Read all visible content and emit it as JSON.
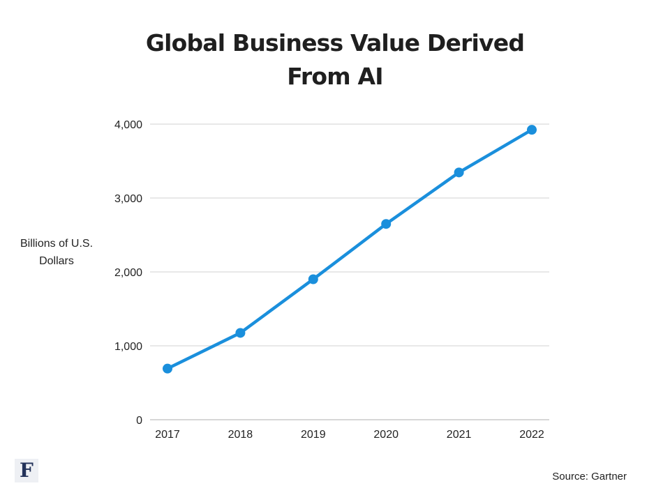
{
  "chart_data": {
    "type": "line",
    "title_lines": [
      "Global Business Value Derived",
      "From AI"
    ],
    "ylabel_lines": [
      "Billions of U.S.",
      "Dollars"
    ],
    "xlabel": "",
    "categories": [
      "2017",
      "2018",
      "2019",
      "2020",
      "2021",
      "2022"
    ],
    "series": [
      {
        "values": [
          692,
          1175,
          1901,
          2649,
          3346,
          3923
        ]
      }
    ],
    "ylim": [
      0,
      4000
    ],
    "yticks": [
      0,
      1000,
      2000,
      3000,
      4000
    ],
    "ytick_labels": [
      "0",
      "1,000",
      "2,000",
      "3,000",
      "4,000"
    ],
    "grid": true,
    "legend": "none",
    "line_color": "#1a8fdc",
    "grid_color": "#d9d9d9"
  },
  "footer": {
    "logo_letter": "F",
    "source": "Source: Gartner"
  }
}
